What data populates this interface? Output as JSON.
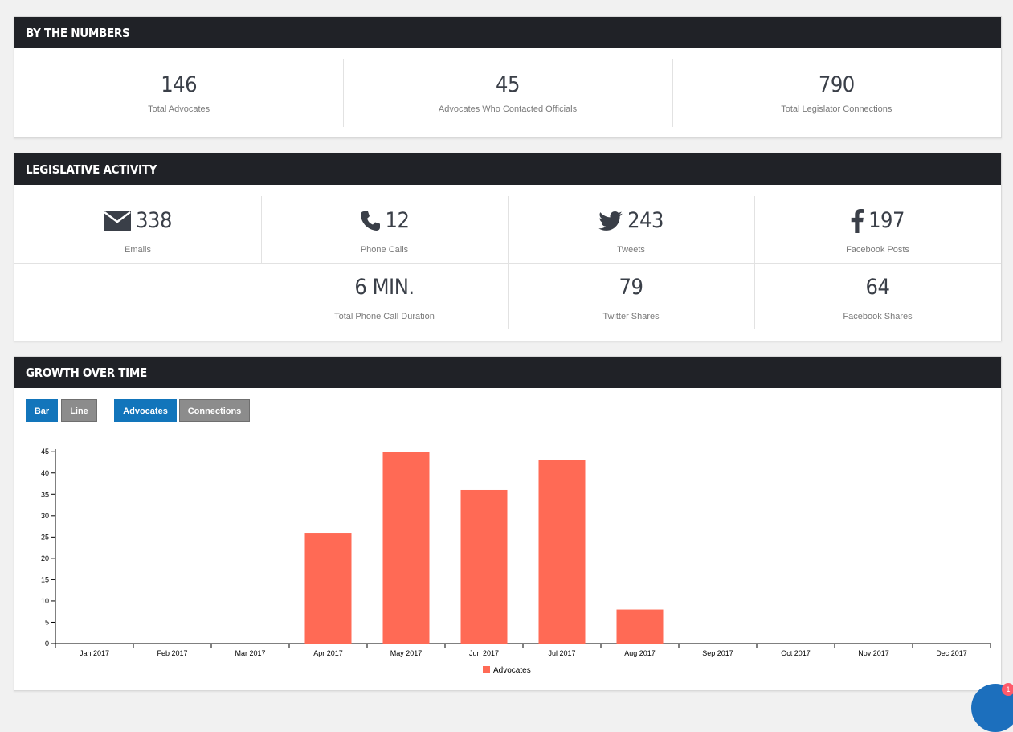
{
  "by_the_numbers": {
    "title": "BY THE NUMBERS",
    "stats": [
      {
        "value": "146",
        "label": "Total Advocates"
      },
      {
        "value": "45",
        "label": "Advocates Who Contacted Officials"
      },
      {
        "value": "790",
        "label": "Total Legislator Connections"
      }
    ]
  },
  "legislative_activity": {
    "title": "LEGISLATIVE ACTIVITY",
    "emails": {
      "value": "338",
      "label": "Emails",
      "icon": "envelope-icon"
    },
    "phone_calls": {
      "value": "12",
      "label": "Phone Calls",
      "icon": "phone-icon"
    },
    "tweets": {
      "value": "243",
      "label": "Tweets",
      "icon": "twitter-icon"
    },
    "facebook_posts": {
      "value": "197",
      "label": "Facebook Posts",
      "icon": "facebook-icon"
    },
    "call_duration": {
      "value": "6 MIN.",
      "label": "Total Phone Call Duration"
    },
    "twitter_shares": {
      "value": "79",
      "label": "Twitter Shares"
    },
    "facebook_shares": {
      "value": "64",
      "label": "Facebook Shares"
    }
  },
  "growth_over_time": {
    "title": "GROWTH OVER TIME",
    "buttons": {
      "bar": "Bar",
      "line": "Line",
      "advocates": "Advocates",
      "connections": "Connections"
    },
    "active": {
      "chart_type": "Bar",
      "metric": "Advocates"
    }
  },
  "chat": {
    "badge": "1"
  },
  "colors": {
    "header_bg": "#202227",
    "accent_blue": "#1275bb",
    "bar_color": "#ff6a55"
  },
  "chart_data": {
    "type": "bar",
    "categories": [
      "Jan 2017",
      "Feb 2017",
      "Mar 2017",
      "Apr 2017",
      "May 2017",
      "Jun 2017",
      "Jul 2017",
      "Aug 2017",
      "Sep 2017",
      "Oct 2017",
      "Nov 2017",
      "Dec 2017"
    ],
    "series": [
      {
        "name": "Advocates",
        "values": [
          0,
          0,
          0,
          26,
          45,
          36,
          43,
          8,
          0,
          0,
          0,
          0
        ]
      }
    ],
    "ylim": [
      0,
      49
    ],
    "yticks": [
      0,
      5,
      10,
      15,
      20,
      25,
      30,
      35,
      40,
      45
    ],
    "legend": "bottom-center",
    "grid": false
  }
}
